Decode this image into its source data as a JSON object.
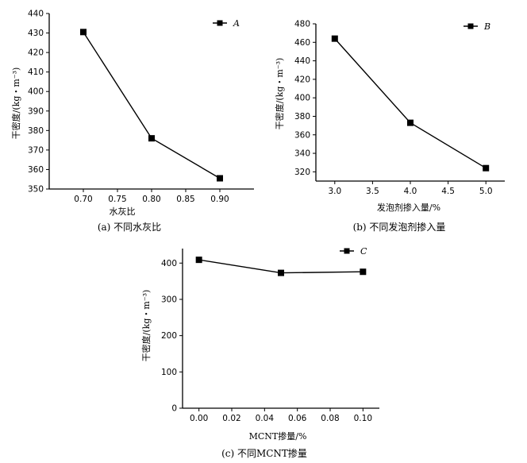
{
  "chart_data": [
    {
      "type": "line",
      "x": [
        0.7,
        0.8,
        0.9
      ],
      "series": [
        {
          "name": "A",
          "values": [
            430.5,
            376,
            355.5
          ]
        }
      ],
      "xlabel": "水灰比",
      "ylabel": "干密度/(kg・m⁻³)",
      "xlim": [
        0.65,
        0.95
      ],
      "ylim": [
        350,
        440
      ],
      "xticks": [
        "0.70",
        "0.75",
        "0.80",
        "0.85",
        "0.90"
      ],
      "yticks": [
        "350",
        "360",
        "370",
        "380",
        "390",
        "400",
        "410",
        "420",
        "430",
        "440"
      ],
      "legend": "top-right",
      "caption": "(a) 不同水灰比"
    },
    {
      "type": "line",
      "x": [
        3.0,
        4.0,
        5.0
      ],
      "series": [
        {
          "name": "B",
          "values": [
            464,
            373,
            324
          ]
        }
      ],
      "xlabel": "发泡剂掺入量/%",
      "ylabel": "干密度/(kg・m⁻³)",
      "xlim": [
        2.75,
        5.25
      ],
      "ylim": [
        310,
        480
      ],
      "xticks": [
        "3.0",
        "3.5",
        "4.0",
        "4.5",
        "5.0"
      ],
      "yticks": [
        "320",
        "340",
        "360",
        "380",
        "400",
        "420",
        "440",
        "460",
        "480"
      ],
      "legend": "top-right",
      "caption": "(b) 不同发泡剂掺入量"
    },
    {
      "type": "line",
      "x": [
        0.0,
        0.05,
        0.1
      ],
      "series": [
        {
          "name": "C",
          "values": [
            409,
            373,
            376
          ]
        }
      ],
      "xlabel": "MCNT掺量/%",
      "ylabel": "干密度/(kg・m⁻³)",
      "xlim": [
        -0.01,
        0.11
      ],
      "ylim": [
        0,
        440
      ],
      "xticks": [
        "0.00",
        "0.02",
        "0.04",
        "0.06",
        "0.08",
        "0.10"
      ],
      "yticks": [
        "0",
        "100",
        "200",
        "300",
        "400"
      ],
      "legend": "top-right",
      "caption": "(c) 不同MCNT掺量"
    }
  ]
}
